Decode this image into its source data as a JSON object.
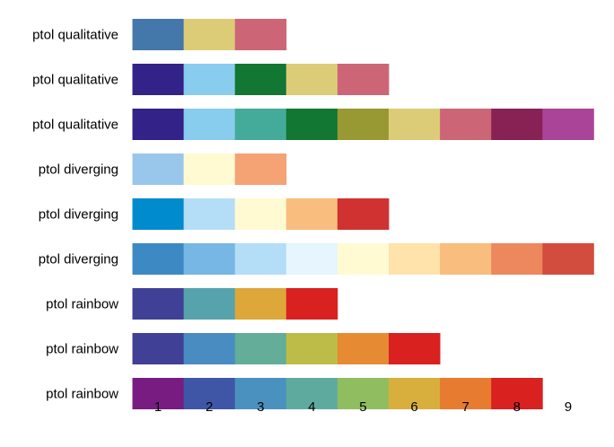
{
  "chart_data": {
    "type": "bar",
    "title": "",
    "xlabel": "",
    "ylabel": "",
    "x_ticks": [
      "1",
      "2",
      "3",
      "4",
      "5",
      "6",
      "7",
      "8",
      "9"
    ],
    "xlim": [
      0.5,
      9.5
    ],
    "grid": false,
    "rows": [
      {
        "label": "ptol qualitative",
        "colors": [
          "#4477AA",
          "#DDCC77",
          "#CC6677"
        ]
      },
      {
        "label": "ptol qualitative",
        "colors": [
          "#332288",
          "#88CCEE",
          "#117733",
          "#DDCC77",
          "#CC6677"
        ]
      },
      {
        "label": "ptol qualitative",
        "colors": [
          "#332288",
          "#88CCEE",
          "#44AA99",
          "#117733",
          "#999933",
          "#DDCC77",
          "#CC6677",
          "#882255",
          "#AA4499"
        ]
      },
      {
        "label": "ptol diverging",
        "colors": [
          "#99C7EC",
          "#FFFAD2",
          "#F5A275"
        ]
      },
      {
        "label": "ptol diverging",
        "colors": [
          "#008BCE",
          "#B4DDF7",
          "#FFFAD2",
          "#F9BD7E",
          "#D03232"
        ]
      },
      {
        "label": "ptol diverging",
        "colors": [
          "#3D89C3",
          "#77B7E5",
          "#B4DDF7",
          "#E6F5FE",
          "#FFFAD2",
          "#FFE3AA",
          "#F9BD7E",
          "#ED875E",
          "#D24D3E"
        ]
      },
      {
        "label": "ptol rainbow",
        "colors": [
          "#404096",
          "#57A3AD",
          "#DEA73A",
          "#D92120"
        ]
      },
      {
        "label": "ptol rainbow",
        "colors": [
          "#404096",
          "#498CC2",
          "#63AD99",
          "#BEBC48",
          "#E68B33",
          "#D92120"
        ]
      },
      {
        "label": "ptol rainbow",
        "colors": [
          "#781C81",
          "#3F56A7",
          "#4B91C0",
          "#5FAA9F",
          "#91BD61",
          "#D8AF3D",
          "#E77C30",
          "#D92120"
        ]
      }
    ]
  }
}
